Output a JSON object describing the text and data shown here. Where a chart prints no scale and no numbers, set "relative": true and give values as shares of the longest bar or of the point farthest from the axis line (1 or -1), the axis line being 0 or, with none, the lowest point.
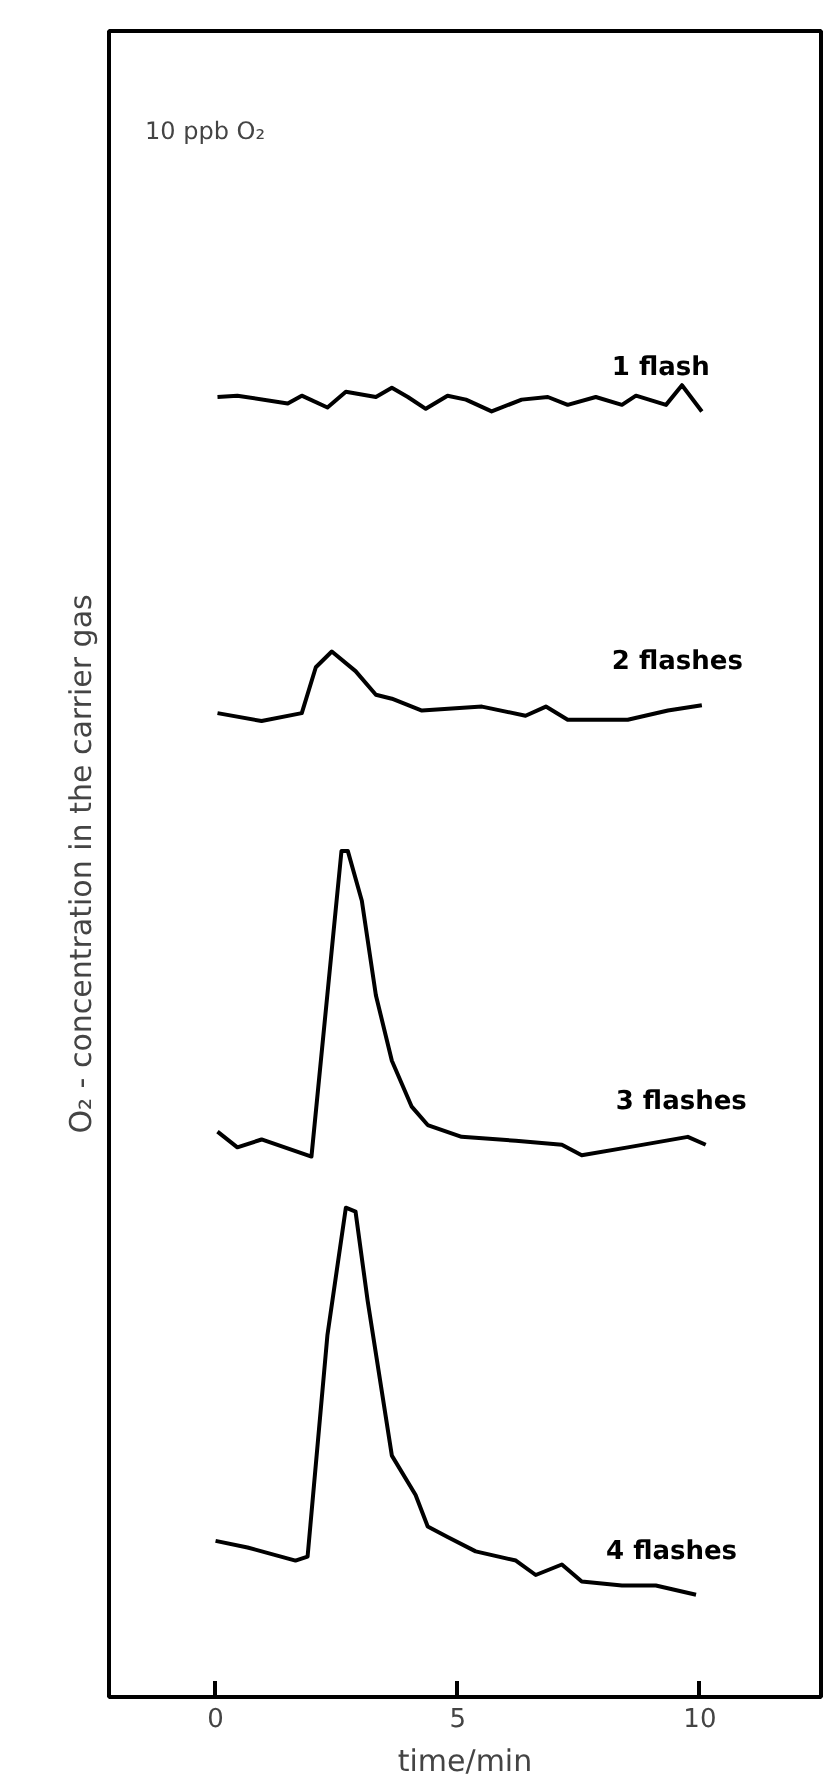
{
  "chart_data": {
    "type": "line",
    "relative": true,
    "xlabel": "time/min",
    "ylabel": "O₂ - concentration in the carrier gas",
    "xlim": [
      -2.2,
      12.5
    ],
    "xticks": [
      0,
      5,
      10
    ],
    "grid": false,
    "legend": false,
    "marker": "none",
    "line_style": "solid",
    "tick_labels": "x",
    "annotations": [
      "10 ppb O₂"
    ],
    "series": [
      {
        "name": "1 flash",
        "color": "#000000",
        "x": [
          0.04,
          0.45,
          1.49,
          1.78,
          2.31,
          2.69,
          3.31,
          3.64,
          3.97,
          4.34,
          4.79,
          5.17,
          5.7,
          6.32,
          6.86,
          7.27,
          7.85,
          8.39,
          8.68,
          9.3,
          9.63,
          10.04
        ],
        "values": [
          0.991,
          0.992,
          0.986,
          0.992,
          0.983,
          0.995,
          0.991,
          0.998,
          0.991,
          0.982,
          0.992,
          0.989,
          0.98,
          0.989,
          0.991,
          0.985,
          0.991,
          0.985,
          0.992,
          0.985,
          1.0,
          0.98
        ]
      },
      {
        "name": "2 flashes",
        "color": "#000000",
        "x": [
          0.04,
          0.95,
          1.78,
          2.07,
          2.4,
          2.89,
          3.31,
          3.64,
          4.26,
          5.5,
          6.4,
          6.82,
          7.27,
          8.51,
          9.34,
          10.04
        ],
        "values": [
          0.75,
          0.744,
          0.75,
          0.785,
          0.797,
          0.782,
          0.764,
          0.761,
          0.752,
          0.755,
          0.748,
          0.755,
          0.745,
          0.745,
          0.752,
          0.756
        ]
      },
      {
        "name": "3 flashes",
        "color": "#000000",
        "x": [
          0.04,
          0.45,
          0.95,
          1.98,
          2.6,
          2.73,
          3.02,
          3.31,
          3.64,
          4.05,
          4.38,
          5.08,
          6.2,
          7.15,
          7.56,
          8.51,
          9.75,
          10.12
        ],
        "values": [
          0.431,
          0.419,
          0.425,
          0.412,
          0.645,
          0.645,
          0.607,
          0.535,
          0.485,
          0.45,
          0.436,
          0.427,
          0.424,
          0.421,
          0.413,
          0.419,
          0.427,
          0.421
        ]
      },
      {
        "name": "4 flashes",
        "color": "#000000",
        "x": [
          0,
          0.66,
          1.65,
          1.9,
          2.31,
          2.69,
          2.89,
          3.14,
          3.64,
          4.13,
          4.38,
          4.79,
          5.37,
          6.2,
          6.61,
          7.15,
          7.56,
          8.39,
          9.09,
          9.92
        ],
        "values": [
          0.119,
          0.114,
          0.104,
          0.107,
          0.276,
          0.373,
          0.37,
          0.302,
          0.184,
          0.154,
          0.13,
          0.122,
          0.111,
          0.104,
          0.093,
          0.101,
          0.088,
          0.085,
          0.085,
          0.078
        ]
      }
    ]
  }
}
